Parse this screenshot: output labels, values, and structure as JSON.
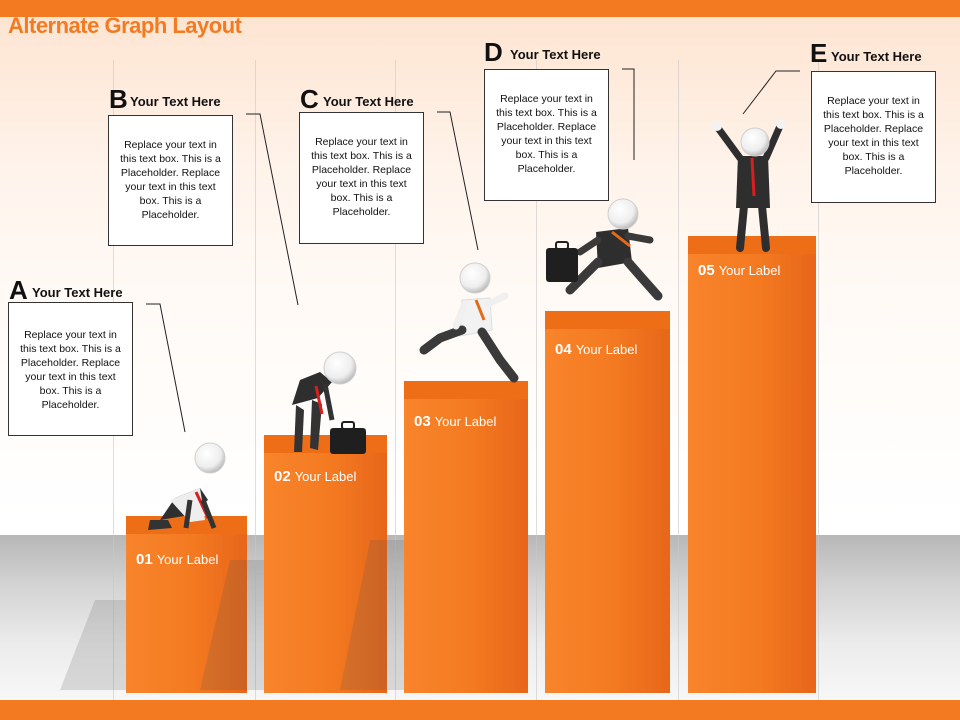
{
  "slide": {
    "title": "Alternate Graph Layout",
    "accent_color": "#f47a21"
  },
  "columns": [
    {
      "number": "01",
      "label": "Your Label",
      "height_level": 1
    },
    {
      "number": "02",
      "label": "Your Label",
      "height_level": 2
    },
    {
      "number": "03",
      "label": "Your Label",
      "height_level": 3
    },
    {
      "number": "04",
      "label": "Your Label",
      "height_level": 4
    },
    {
      "number": "05",
      "label": "Your Label",
      "height_level": 5
    }
  ],
  "callouts": [
    {
      "letter": "A",
      "heading": "Your Text Here",
      "body": "Replace your text in this text box. This is a Placeholder. Replace your text in this text box. This is a Placeholder."
    },
    {
      "letter": "B",
      "heading": "Your Text Here",
      "body": "Replace your text in this text box. This is a Placeholder. Replace your text in this text box. This is a Placeholder."
    },
    {
      "letter": "C",
      "heading": "Your Text Here",
      "body": "Replace your text in this text box. This is a Placeholder. Replace your text in this text box. This is a Placeholder."
    },
    {
      "letter": "D",
      "heading": "Your Text Here",
      "body": "Replace your text in this text box. This is a Placeholder. Replace your text in this text box. This is a Placeholder."
    },
    {
      "letter": "E",
      "heading": "Your Text Here",
      "body": "Replace your text in this text box. This is a Placeholder. Replace your text in this text box. This is a Placeholder."
    }
  ],
  "figures": [
    {
      "name": "crouching-start-figure"
    },
    {
      "name": "tired-bending-figure",
      "prop": "briefcase"
    },
    {
      "name": "running-figure"
    },
    {
      "name": "leaping-figure",
      "prop": "briefcase"
    },
    {
      "name": "celebrating-figure"
    }
  ]
}
